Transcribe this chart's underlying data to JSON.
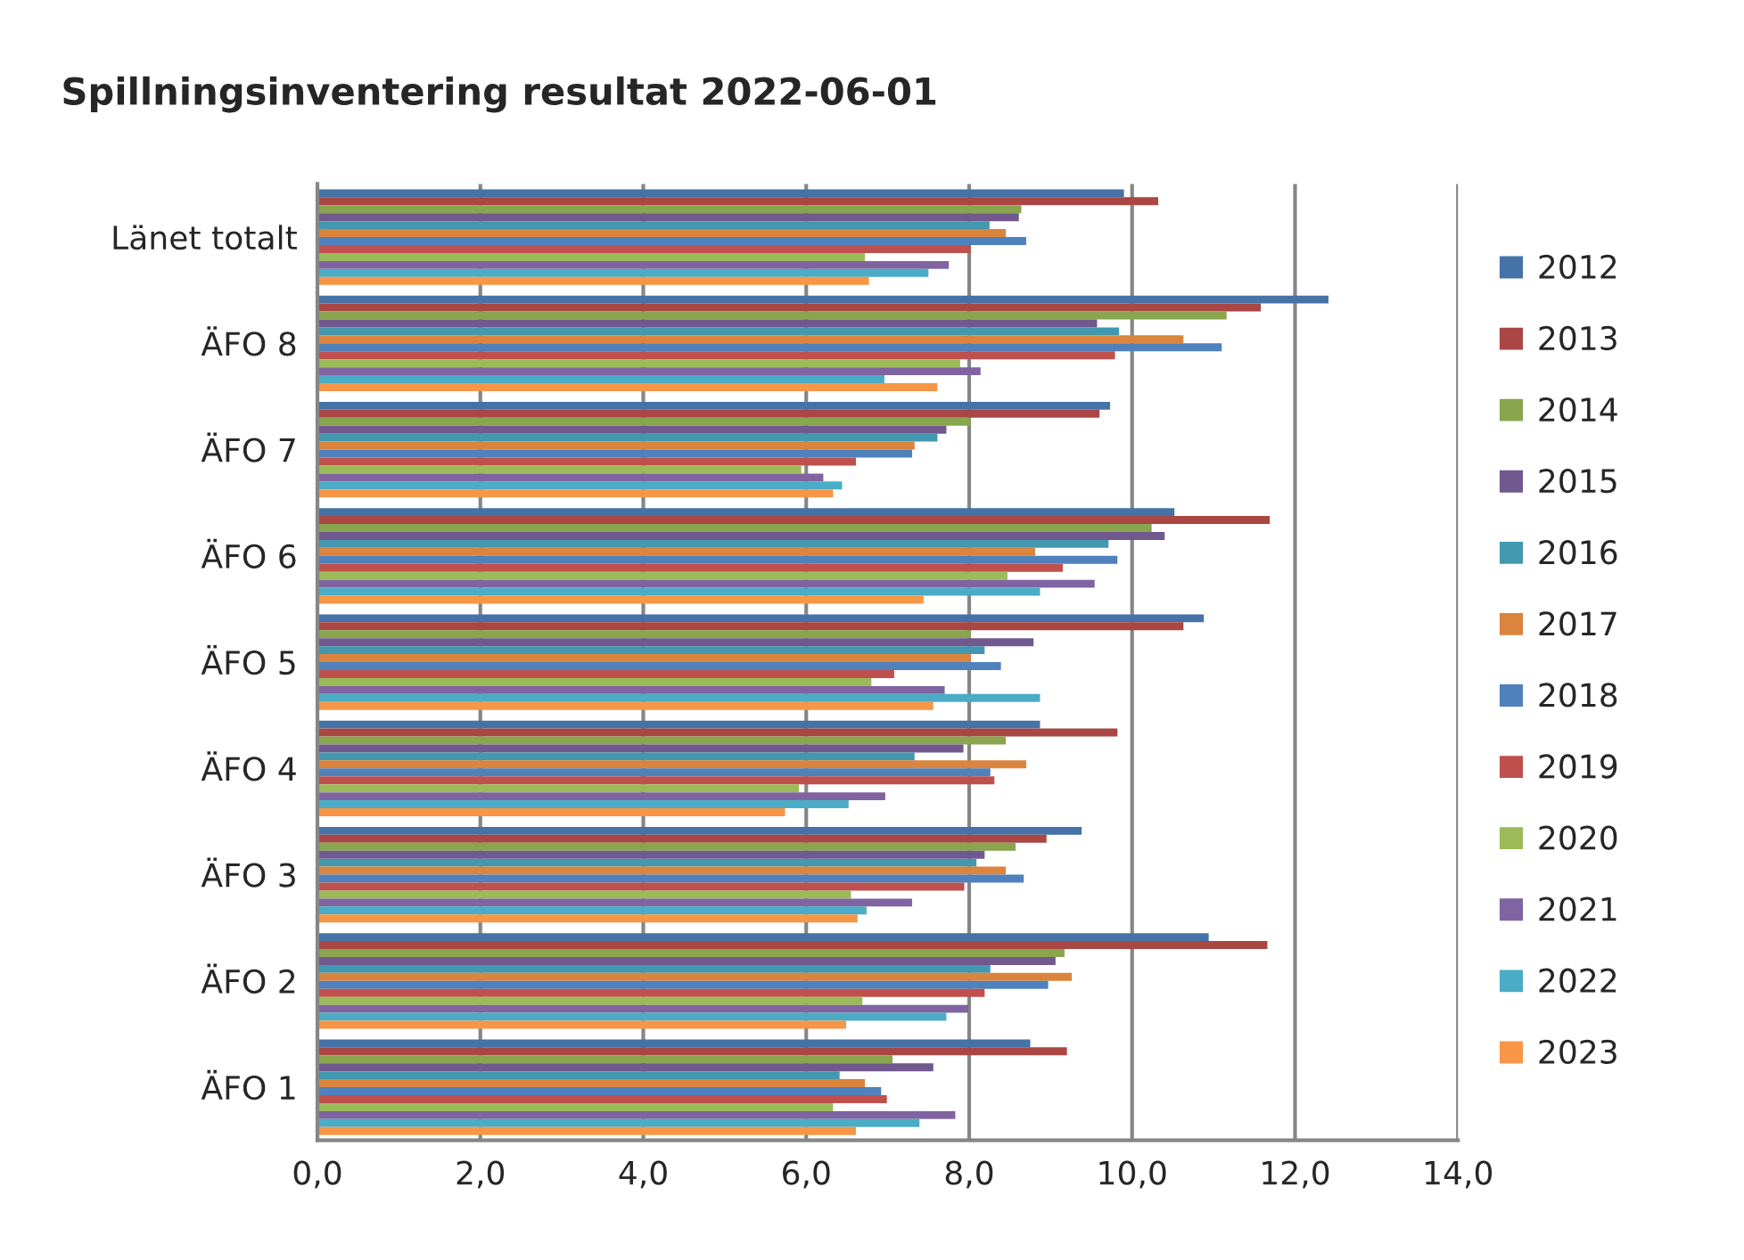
{
  "chart_data": {
    "type": "bar",
    "orientation": "horizontal",
    "title": "Spillningsinventering resultat 2022-06-01",
    "categories": [
      "Länet totalt",
      "ÄFO 8",
      "ÄFO 7",
      "ÄFO 6",
      "ÄFO 5",
      "ÄFO 4",
      "ÄFO 3",
      "ÄFO 2",
      "ÄFO 1"
    ],
    "series": [
      {
        "name": "2012",
        "color": "#4572a7",
        "values": [
          9.9,
          12.41,
          9.73,
          10.52,
          10.88,
          8.87,
          9.38,
          10.94,
          8.75
        ]
      },
      {
        "name": "2013",
        "color": "#aa4643",
        "values": [
          10.32,
          11.58,
          9.6,
          11.69,
          10.63,
          9.82,
          8.95,
          11.66,
          9.2
        ]
      },
      {
        "name": "2014",
        "color": "#89a54e",
        "values": [
          8.64,
          11.16,
          8.02,
          10.24,
          8.02,
          8.45,
          8.57,
          9.17,
          7.06
        ]
      },
      {
        "name": "2015",
        "color": "#71588f",
        "values": [
          8.61,
          9.57,
          7.72,
          10.4,
          8.79,
          7.93,
          8.19,
          9.06,
          7.56
        ]
      },
      {
        "name": "2016",
        "color": "#4198af",
        "values": [
          8.25,
          9.84,
          7.61,
          9.71,
          8.19,
          7.33,
          8.09,
          8.26,
          6.41
        ]
      },
      {
        "name": "2017",
        "color": "#db843d",
        "values": [
          8.45,
          10.63,
          7.33,
          8.81,
          8.02,
          8.7,
          8.45,
          9.26,
          6.72
        ]
      },
      {
        "name": "2018",
        "color": "#4f81bd",
        "values": [
          8.7,
          11.1,
          7.3,
          9.82,
          8.39,
          8.26,
          8.67,
          8.97,
          6.92
        ]
      },
      {
        "name": "2019",
        "color": "#c0504d",
        "values": [
          8.02,
          9.79,
          6.61,
          9.15,
          7.08,
          8.31,
          7.94,
          8.19,
          6.99
        ]
      },
      {
        "name": "2020",
        "color": "#9bbb59",
        "values": [
          6.72,
          7.89,
          5.94,
          8.47,
          6.8,
          5.91,
          6.55,
          6.69,
          6.33
        ]
      },
      {
        "name": "2021",
        "color": "#8064a2",
        "values": [
          7.75,
          8.14,
          6.21,
          9.54,
          7.7,
          6.97,
          7.3,
          7.99,
          7.83
        ]
      },
      {
        "name": "2022",
        "color": "#4bacc6",
        "values": [
          7.5,
          6.96,
          6.44,
          8.87,
          8.87,
          6.52,
          6.74,
          7.72,
          7.39
        ]
      },
      {
        "name": "2023",
        "color": "#f79646",
        "values": [
          6.77,
          7.61,
          6.33,
          7.44,
          7.56,
          5.74,
          6.63,
          6.49,
          6.61
        ]
      }
    ],
    "xlim": [
      0,
      14
    ],
    "xticks": [
      {
        "value": 0,
        "label": "0,0"
      },
      {
        "value": 2,
        "label": "2,0"
      },
      {
        "value": 4,
        "label": "4,0"
      },
      {
        "value": 6,
        "label": "6,0"
      },
      {
        "value": 8,
        "label": "8,0"
      },
      {
        "value": 10,
        "label": "10,0"
      },
      {
        "value": 12,
        "label": "12,0"
      },
      {
        "value": 14,
        "label": "14,0"
      }
    ],
    "grid": "x",
    "legend": "right"
  }
}
